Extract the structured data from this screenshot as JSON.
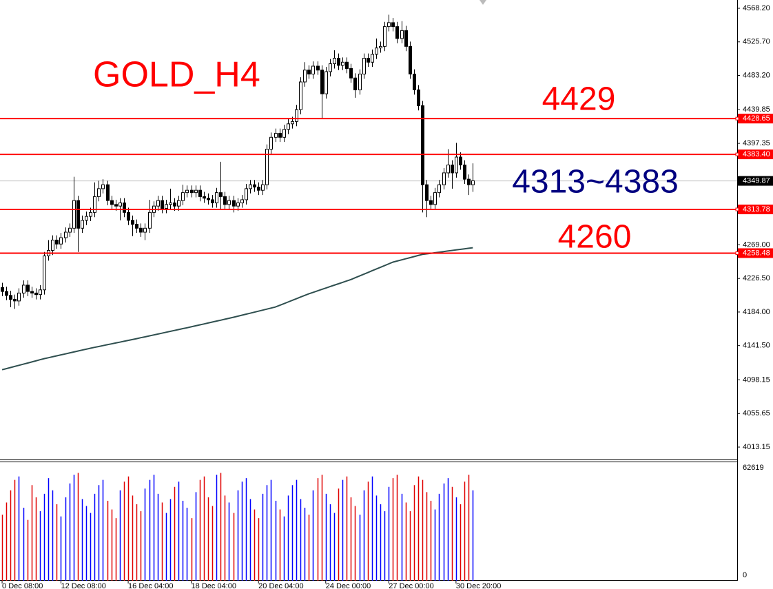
{
  "chart_data": {
    "type": "candlestick",
    "annotations": [
      "GOLD_H4",
      "4429",
      "4313~4383",
      "4260"
    ],
    "annotation_colors": [
      "#ff0000",
      "#ff0000",
      "#000080",
      "#ff0000"
    ],
    "open": [
      4215,
      4210,
      4205,
      4200,
      4198,
      4208,
      4218,
      4210,
      4208,
      4206,
      4212,
      4255,
      4262,
      4275,
      4270,
      4278,
      4285,
      4290,
      4325,
      4290,
      4300,
      4305,
      4310,
      4330,
      4340,
      4345,
      4325,
      4320,
      4318,
      4322,
      4310,
      4300,
      4295,
      4290,
      4285,
      4290,
      4310,
      4318,
      4325,
      4315,
      4320,
      4322,
      4318,
      4325,
      4335,
      4338,
      4335,
      4338,
      4330,
      4328,
      4326,
      4322,
      4335,
      4330,
      4320,
      4325,
      4318,
      4322,
      4326,
      4340,
      4345,
      4342,
      4338,
      4345,
      4390,
      4405,
      4410,
      4405,
      4415,
      4422,
      4425,
      4440,
      4475,
      4490,
      4485,
      4495,
      4490,
      4460,
      4488,
      4498,
      4505,
      4496,
      4500,
      4492,
      4480,
      4465,
      4485,
      4505,
      4500,
      4510,
      4518,
      4520,
      4545,
      4550,
      4545,
      4530,
      4540,
      4520,
      4485,
      4465,
      4445,
      4345,
      4325,
      4320,
      4335,
      4345,
      4360,
      4370,
      4360,
      4380,
      4370,
      4352,
      4345
    ],
    "high": [
      4221,
      4216,
      4211,
      4206,
      4214,
      4224,
      4224,
      4216,
      4214,
      4218,
      4260,
      4275,
      4281,
      4281,
      4284,
      4291,
      4296,
      4355,
      4331,
      4306,
      4311,
      4316,
      4348,
      4350,
      4352,
      4350,
      4331,
      4326,
      4328,
      4328,
      4316,
      4306,
      4301,
      4296,
      4296,
      4326,
      4324,
      4331,
      4331,
      4326,
      4340,
      4328,
      4331,
      4345,
      4344,
      4344,
      4344,
      4344,
      4336,
      4334,
      4332,
      4341,
      4374,
      4336,
      4331,
      4331,
      4328,
      4332,
      4346,
      4351,
      4351,
      4348,
      4351,
      4396,
      4411,
      4416,
      4416,
      4421,
      4428,
      4431,
      4446,
      4481,
      4500,
      4496,
      4501,
      4501,
      4496,
      4494,
      4504,
      4515,
      4511,
      4506,
      4506,
      4498,
      4486,
      4491,
      4511,
      4511,
      4516,
      4530,
      4526,
      4551,
      4560,
      4556,
      4551,
      4552,
      4546,
      4526,
      4491,
      4471,
      4451,
      4351,
      4331,
      4341,
      4351,
      4366,
      4390,
      4376,
      4398,
      4386,
      4376,
      4358,
      4372
    ],
    "low": [
      4204,
      4199,
      4190,
      4188,
      4192,
      4202,
      4204,
      4202,
      4200,
      4200,
      4206,
      4249,
      4256,
      4264,
      4264,
      4272,
      4279,
      4284,
      4260,
      4284,
      4294,
      4299,
      4304,
      4324,
      4334,
      4319,
      4314,
      4312,
      4300,
      4304,
      4294,
      4280,
      4284,
      4279,
      4275,
      4284,
      4304,
      4312,
      4309,
      4309,
      4314,
      4312,
      4312,
      4319,
      4329,
      4329,
      4329,
      4324,
      4322,
      4320,
      4316,
      4316,
      4314,
      4314,
      4314,
      4310,
      4312,
      4316,
      4320,
      4334,
      4336,
      4332,
      4332,
      4339,
      4384,
      4399,
      4399,
      4399,
      4409,
      4416,
      4419,
      4434,
      4469,
      4479,
      4479,
      4484,
      4428,
      4454,
      4482,
      4492,
      4490,
      4490,
      4486,
      4474,
      4455,
      4459,
      4479,
      4494,
      4494,
      4504,
      4512,
      4514,
      4539,
      4539,
      4524,
      4524,
      4514,
      4479,
      4459,
      4439,
      4310,
      4304,
      4314,
      4314,
      4329,
      4339,
      4354,
      4340,
      4354,
      4364,
      4346,
      4332,
      4336
    ],
    "close": [
      4210,
      4205,
      4200,
      4198,
      4208,
      4218,
      4210,
      4208,
      4206,
      4212,
      4255,
      4262,
      4275,
      4270,
      4278,
      4285,
      4290,
      4325,
      4290,
      4300,
      4305,
      4310,
      4330,
      4340,
      4345,
      4325,
      4320,
      4318,
      4322,
      4310,
      4300,
      4295,
      4290,
      4285,
      4290,
      4310,
      4318,
      4325,
      4315,
      4320,
      4322,
      4318,
      4325,
      4335,
      4338,
      4335,
      4338,
      4330,
      4328,
      4326,
      4322,
      4335,
      4330,
      4320,
      4325,
      4318,
      4322,
      4326,
      4340,
      4345,
      4342,
      4338,
      4345,
      4390,
      4405,
      4410,
      4405,
      4415,
      4422,
      4425,
      4440,
      4475,
      4490,
      4485,
      4495,
      4490,
      4460,
      4488,
      4498,
      4505,
      4496,
      4500,
      4492,
      4480,
      4465,
      4485,
      4505,
      4500,
      4510,
      4518,
      4520,
      4545,
      4550,
      4545,
      4530,
      4540,
      4520,
      4485,
      4465,
      4445,
      4345,
      4325,
      4320,
      4335,
      4345,
      4360,
      4370,
      4360,
      4380,
      4370,
      4352,
      4345,
      4350
    ],
    "ma": [
      4111.0,
      4112.4,
      4113.8,
      4115.2,
      4116.6,
      4118.0,
      4119.4,
      4120.8,
      4122.2,
      4123.6,
      4125.0,
      4126.2,
      4127.4,
      4128.6,
      4129.8,
      4131.0,
      4132.2,
      4133.4,
      4134.6,
      4135.8,
      4137.0,
      4138.2,
      4139.3,
      4140.4,
      4141.5,
      4142.6,
      4143.7,
      4144.8,
      4145.9,
      4147.0,
      4148.1,
      4149.2,
      4150.3,
      4151.5,
      4152.6,
      4153.8,
      4154.9,
      4156.1,
      4157.2,
      4158.4,
      4159.5,
      4160.7,
      4161.8,
      4163.0,
      4164.1,
      4165.3,
      4166.5,
      4167.7,
      4168.9,
      4170.1,
      4171.3,
      4172.5,
      4173.7,
      4174.9,
      4176.1,
      4177.3,
      4178.6,
      4179.9,
      4181.2,
      4182.5,
      4183.8,
      4185.1,
      4186.4,
      4187.7,
      4189.0,
      4190.3,
      4192.4,
      4194.5,
      4196.6,
      4198.7,
      4200.8,
      4202.9,
      4205.0,
      4207.1,
      4208.9,
      4210.7,
      4212.5,
      4214.3,
      4216.1,
      4217.9,
      4219.7,
      4221.5,
      4223.3,
      4225.1,
      4227.3,
      4229.5,
      4231.7,
      4233.9,
      4236.1,
      4238.3,
      4240.5,
      4242.7,
      4244.9,
      4247.1,
      4248.5,
      4249.9,
      4251.3,
      4252.7,
      4254.1,
      4255.5,
      4256.9,
      4257.6,
      4258.3,
      4259.0,
      4259.7,
      4260.4,
      4261.1,
      4261.8,
      4262.5,
      4263.2,
      4263.9,
      4264.6,
      4265.3
    ],
    "ma_color": "#2f4f4f",
    "volume": [
      38000,
      45000,
      52000,
      58000,
      60000,
      42000,
      35000,
      55000,
      48000,
      40000,
      50000,
      59000,
      52000,
      44000,
      37000,
      48000,
      56000,
      61000,
      62000,
      47000,
      43000,
      39000,
      50000,
      55000,
      58000,
      46000,
      41000,
      36000,
      52000,
      57000,
      60000,
      49000,
      44000,
      40000,
      53000,
      58000,
      61000,
      50000,
      45000,
      39000,
      47000,
      54000,
      57000,
      46000,
      42000,
      36000,
      51000,
      58000,
      60000,
      48000,
      43000,
      61000,
      62000,
      49000,
      45000,
      39000,
      52000,
      57000,
      59000,
      47000,
      41000,
      36000,
      50000,
      55000,
      58000,
      46000,
      41000,
      37000,
      49000,
      55000,
      58000,
      47000,
      42000,
      38000,
      52000,
      59000,
      61000,
      50000,
      44000,
      39000,
      53000,
      58000,
      60000,
      48000,
      43000,
      38000,
      52000,
      57000,
      60000,
      49000,
      44000,
      40000,
      54000,
      59000,
      61000,
      50000,
      45000,
      40000,
      55000,
      60000,
      58000,
      51000,
      46000,
      41000,
      50000,
      56000,
      59000,
      54000,
      48000,
      44000,
      57000,
      61000,
      52000
    ],
    "volume_up_color": "#0000ff",
    "volume_down_color": "#e00000",
    "vlim": [
      0,
      62619
    ],
    "vticks": [
      62619,
      0
    ],
    "xlim": [
      -0.5,
      174.9
    ],
    "xticks": [
      {
        "value": 0,
        "label": "0 Dec 08:00"
      },
      {
        "value": 14,
        "label": "12 Dec 08:00"
      },
      {
        "value": 30,
        "label": "16 Dec 04:00"
      },
      {
        "value": 45,
        "label": "18 Dec 04:00"
      },
      {
        "value": 61,
        "label": "20 Dec 04:00"
      },
      {
        "value": 77,
        "label": "24 Dec 00:00"
      },
      {
        "value": 92,
        "label": "27 Dec 00:00"
      },
      {
        "value": 108,
        "label": "30 Dec 20:00"
      }
    ],
    "ylim": [
      3996.6,
      4578.66
    ],
    "yticks": [
      {
        "value": 4568.2,
        "label": "4568.20"
      },
      {
        "value": 4525.7,
        "label": "4525.70"
      },
      {
        "value": 4483.2,
        "label": "4483.20"
      },
      4439.85,
      4397.35,
      {
        "value": 4269,
        "label": "4269.00"
      },
      {
        "value": 4226.5,
        "label": "4226.50"
      },
      {
        "value": 4184,
        "label": "4184.00"
      },
      {
        "value": 4141.5,
        "label": "4141.50"
      },
      4098.15,
      4055.65,
      4013.15
    ],
    "levels": [
      4428.65,
      {
        "value": 4383.4,
        "label": "4383.40"
      },
      4313.78,
      4258.48
    ],
    "level_color": "#ff0000",
    "current_price": 4349.87
  }
}
